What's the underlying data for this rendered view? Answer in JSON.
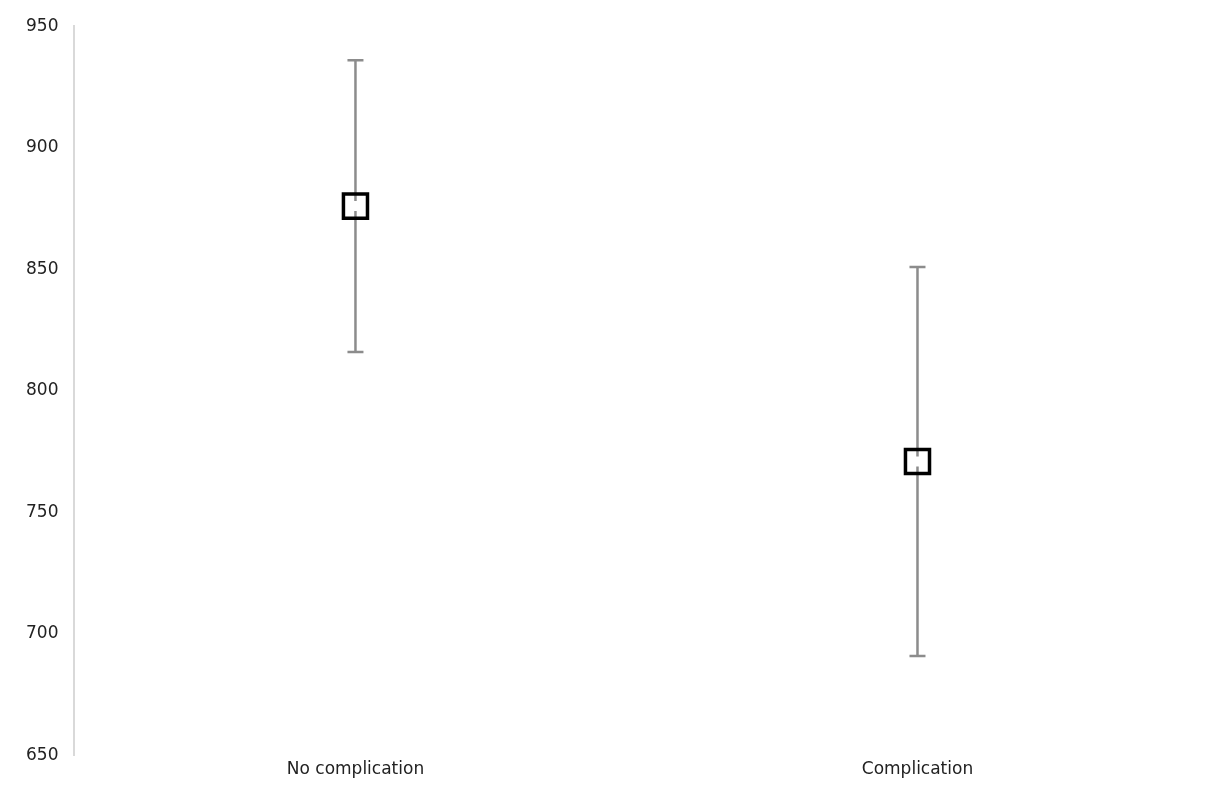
{
  "chart_data": {
    "type": "scatter",
    "categories": [
      "No complication",
      "Complication"
    ],
    "series": [
      {
        "color": "#000000",
        "values": [
          876,
          771
        ],
        "errors": [
          60,
          80
        ]
      }
    ],
    "marker": "square",
    "ylim": [
      650,
      950
    ],
    "yticks": [
      650,
      700,
      750,
      800,
      850,
      900,
      950
    ],
    "grid": false,
    "legend": false
  }
}
